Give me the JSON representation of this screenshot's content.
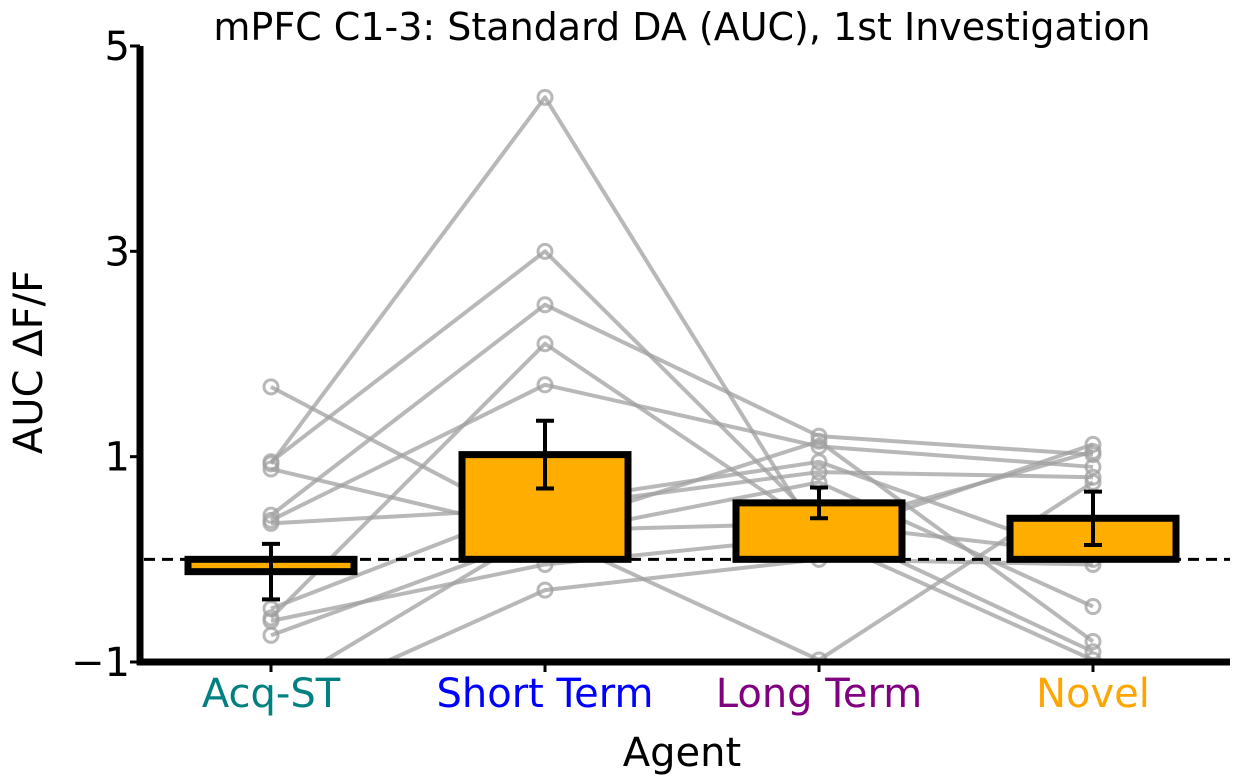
{
  "chart_data": {
    "type": "bar",
    "title": "mPFC C1-3: Standard DA (AUC), 1st Investigation",
    "xlabel": "Agent",
    "ylabel": "AUC ΔF/F",
    "ylim": [
      -1,
      5
    ],
    "ytick_values": [
      -1,
      1,
      3,
      5
    ],
    "ytick_labels": [
      "−1",
      "1",
      "3",
      "5"
    ],
    "categories": [
      "Acq-ST",
      "Short Term",
      "Long Term",
      "Novel"
    ],
    "category_colors": [
      "#008080",
      "#0000ff",
      "#800080",
      "#ffa500"
    ],
    "bar_color": "#ffae00",
    "bar_edge_color": "#000000",
    "values": [
      -0.12,
      1.02,
      0.55,
      0.4
    ],
    "errors": [
      0.27,
      0.33,
      0.15,
      0.26
    ],
    "baseline": 0,
    "baseline_style": "dashed",
    "individual_color": "#a0a0a0",
    "individual_lines": [
      [
        1.68,
        0.28,
        0.35,
        0.05
      ],
      [
        0.93,
        4.5,
        0.2,
        1.12
      ],
      [
        0.95,
        3.0,
        0.35,
        -0.9
      ],
      [
        0.88,
        0.25,
        -0.98,
        0.75
      ],
      [
        0.43,
        2.48,
        1.2,
        1.02
      ],
      [
        0.38,
        1.7,
        1.1,
        0.9
      ],
      [
        0.35,
        0.5,
        0.85,
        0.8
      ],
      [
        -0.48,
        0.55,
        0.95,
        0.0
      ],
      [
        -0.57,
        2.1,
        0.3,
        1.05
      ],
      [
        -0.74,
        0.23,
        0.75,
        -0.46
      ],
      [
        -0.6,
        -0.05,
        0.22,
        -0.98
      ],
      [
        -1.3,
        0.3,
        1.15,
        -0.8
      ],
      [
        -1.5,
        -0.3,
        0.0,
        -0.05
      ]
    ],
    "grid": false,
    "legend": "none"
  }
}
